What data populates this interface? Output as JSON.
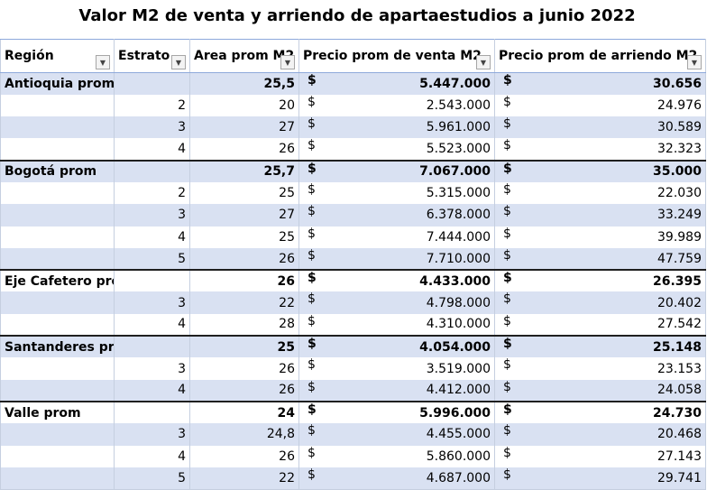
{
  "title": "Valor M2 de venta y arriendo de apartaestudios a junio 2022",
  "currency_symbol": "$",
  "headers": {
    "region": "Región",
    "estrato": "Estrato",
    "area": "Area prom M2",
    "venta": "Precio prom de venta M2",
    "arriendo": "Precio prom de arriendo M2"
  },
  "colors": {
    "band": "#d9e1f2",
    "header_border": "#8ea9db"
  },
  "rows": [
    {
      "type": "group",
      "region": "Antioquia prom",
      "estrato": "",
      "area": "25,5",
      "venta": "5.447.000",
      "arriendo": "30.656"
    },
    {
      "type": "detail",
      "region": "",
      "estrato": "2",
      "area": "20",
      "venta": "2.543.000",
      "arriendo": "24.976"
    },
    {
      "type": "detail",
      "region": "",
      "estrato": "3",
      "area": "27",
      "venta": "5.961.000",
      "arriendo": "30.589"
    },
    {
      "type": "detail",
      "region": "",
      "estrato": "4",
      "area": "26",
      "venta": "5.523.000",
      "arriendo": "32.323"
    },
    {
      "type": "group",
      "region": "Bogotá prom",
      "estrato": "",
      "area": "25,7",
      "venta": "7.067.000",
      "arriendo": "35.000"
    },
    {
      "type": "detail",
      "region": "",
      "estrato": "2",
      "area": "25",
      "venta": "5.315.000",
      "arriendo": "22.030"
    },
    {
      "type": "detail",
      "region": "",
      "estrato": "3",
      "area": "27",
      "venta": "6.378.000",
      "arriendo": "33.249"
    },
    {
      "type": "detail",
      "region": "",
      "estrato": "4",
      "area": "25",
      "venta": "7.444.000",
      "arriendo": "39.989"
    },
    {
      "type": "detail",
      "region": "",
      "estrato": "5",
      "area": "26",
      "venta": "7.710.000",
      "arriendo": "47.759"
    },
    {
      "type": "group",
      "region": "Eje Cafetero prom",
      "estrato": "",
      "area": "26",
      "venta": "4.433.000",
      "arriendo": "26.395"
    },
    {
      "type": "detail",
      "region": "",
      "estrato": "3",
      "area": "22",
      "venta": "4.798.000",
      "arriendo": "20.402"
    },
    {
      "type": "detail",
      "region": "",
      "estrato": "4",
      "area": "28",
      "venta": "4.310.000",
      "arriendo": "27.542"
    },
    {
      "type": "group",
      "region": "Santanderes prom",
      "estrato": "",
      "area": "25",
      "venta": "4.054.000",
      "arriendo": "25.148"
    },
    {
      "type": "detail",
      "region": "",
      "estrato": "3",
      "area": "26",
      "venta": "3.519.000",
      "arriendo": "23.153"
    },
    {
      "type": "detail",
      "region": "",
      "estrato": "4",
      "area": "26",
      "venta": "4.412.000",
      "arriendo": "24.058"
    },
    {
      "type": "group",
      "region": "Valle prom",
      "estrato": "",
      "area": "24",
      "venta": "5.996.000",
      "arriendo": "24.730"
    },
    {
      "type": "detail",
      "region": "",
      "estrato": "3",
      "area": "24,8",
      "venta": "4.455.000",
      "arriendo": "20.468"
    },
    {
      "type": "detail",
      "region": "",
      "estrato": "4",
      "area": "26",
      "venta": "5.860.000",
      "arriendo": "27.143"
    },
    {
      "type": "detail",
      "region": "",
      "estrato": "5",
      "area": "22",
      "venta": "4.687.000",
      "arriendo": "29.741"
    }
  ]
}
